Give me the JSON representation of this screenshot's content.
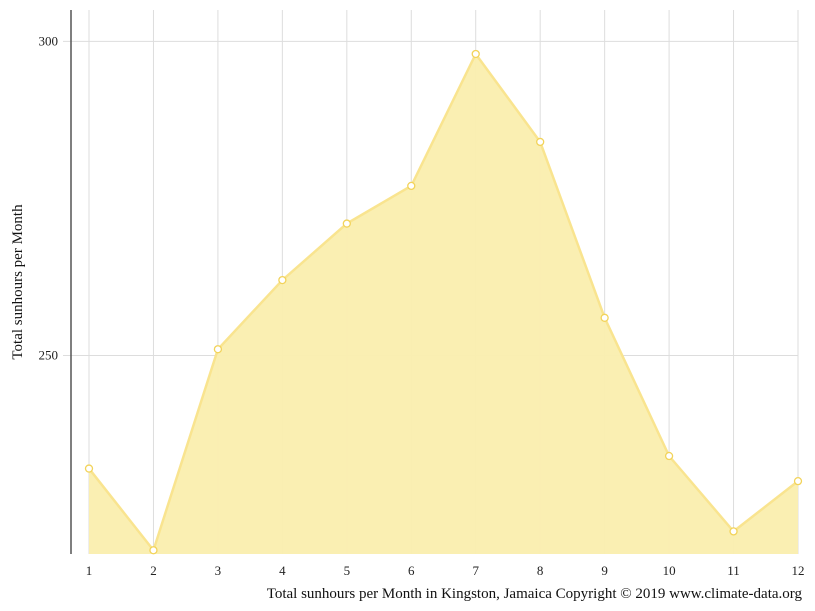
{
  "chart_data": {
    "type": "area",
    "x": [
      1,
      2,
      3,
      4,
      5,
      6,
      7,
      8,
      9,
      10,
      11,
      12
    ],
    "series": [
      {
        "values": [
          232,
          219,
          251,
          262,
          271,
          277,
          298,
          284,
          256,
          234,
          222,
          230
        ]
      }
    ],
    "xlabel": "",
    "ylabel": "Total sunhours per Month",
    "caption": "Total sunhours per Month in Kingston, Jamaica Copyright © 2019 www.climate-data.org",
    "x_ticks": [
      "1",
      "2",
      "3",
      "4",
      "5",
      "6",
      "7",
      "8",
      "9",
      "10",
      "11",
      "12"
    ],
    "y_ticks": [
      250,
      300
    ],
    "ylim": [
      218.4,
      305
    ],
    "xlim": [
      1,
      12
    ],
    "grid": true,
    "colors": {
      "fill": "#faeeae",
      "line": "#f9e48f",
      "marker_fill": "#ffffff",
      "grid": "#dddddd",
      "axis": "#555555"
    }
  }
}
